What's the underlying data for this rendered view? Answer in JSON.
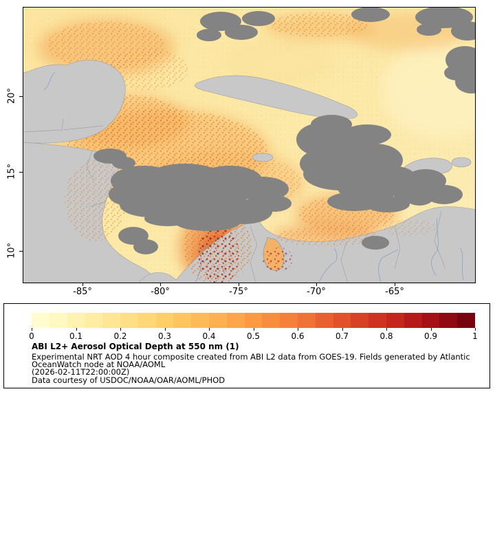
{
  "map": {
    "lat_tick_labels": [
      "20°",
      "15°",
      "10°"
    ],
    "lon_tick_labels": [
      "-85°",
      "-80°",
      "-75°",
      "-70°",
      "-65°"
    ]
  },
  "legend": {
    "title": "ABI L2+ Aerosol Optical Depth at 550 nm (1)",
    "description_line1": "Experimental NRT AOD 4 hour composite created from ABI L2 data from GOES-19. Fields generated by Atlantic",
    "description_line2": "OceanWatch node at NOAA/AOML",
    "timestamp": "(2026-02-11T22:00:00Z)",
    "credit": "Data courtesy of USDOC/NOAA/OAR/AOML/PHOD",
    "colorbar": {
      "min": 0,
      "max": 1,
      "tick_labels": [
        "0",
        "0.1",
        "0.2",
        "0.3",
        "0.4",
        "0.5",
        "0.6",
        "0.7",
        "0.8",
        "0.9",
        "1"
      ],
      "segments": 25,
      "anchor_colors": [
        "#ffffd6",
        "#fff3b2",
        "#fee38d",
        "#fecf66",
        "#fdb554",
        "#fb9a43",
        "#f27a38",
        "#e1512c",
        "#cc2a1f",
        "#a50f15",
        "#6b000d"
      ]
    }
  },
  "chart_data": {
    "type": "heatmap",
    "title": "ABI L2+ Aerosol Optical Depth at 550 nm (1)",
    "variable": "Aerosol Optical Depth at 550 nm",
    "x_tick_labels": [
      "-85°",
      "-80°",
      "-75°",
      "-70°",
      "-65°"
    ],
    "y_tick_labels": [
      "20°",
      "15°",
      "10°"
    ],
    "colorbar": {
      "range": [
        0,
        1
      ],
      "ticks": [
        0,
        0.1,
        0.2,
        0.3,
        0.4,
        0.5,
        0.6,
        0.7,
        0.8,
        0.9,
        1
      ]
    }
  }
}
